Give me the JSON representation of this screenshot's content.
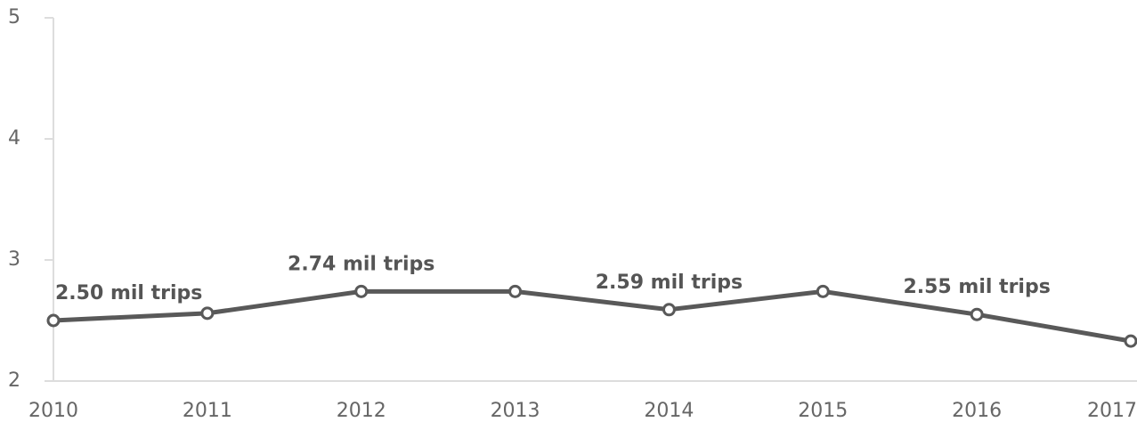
{
  "chart_data": {
    "type": "line",
    "categories": [
      "2010",
      "2011",
      "2012",
      "2013",
      "2014",
      "2015",
      "2016",
      "2017"
    ],
    "series": [
      {
        "name": "Trips",
        "color": "#595959",
        "values": [
          2.5,
          2.56,
          2.74,
          2.74,
          2.59,
          2.74,
          2.55,
          2.33
        ],
        "value_labels": [
          "2.50 mil trips",
          null,
          "2.74 mil trips",
          null,
          "2.59 mil trips",
          null,
          "2.55 mil trips",
          null
        ]
      }
    ],
    "ylim": [
      2,
      5
    ],
    "yticks": [
      2,
      3,
      4,
      5
    ],
    "grid": false
  }
}
